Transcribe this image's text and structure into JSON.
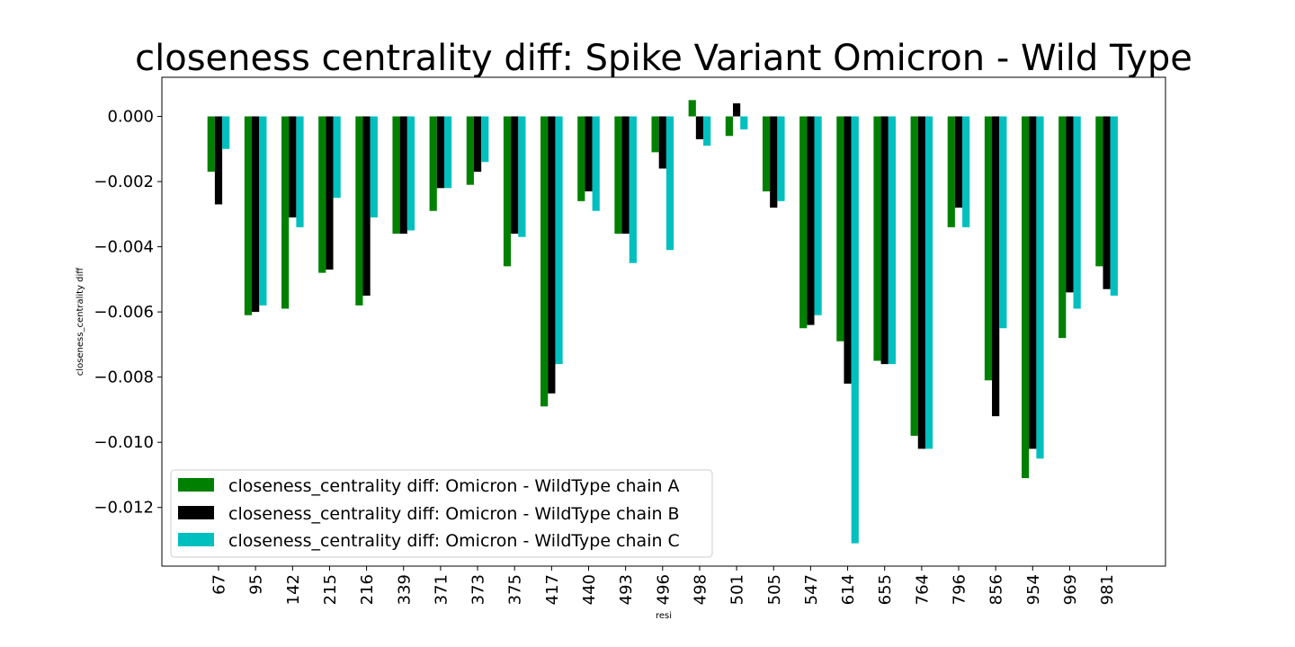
{
  "chart_data": {
    "type": "bar",
    "title": "closeness centrality diff: Spike Variant Omicron - Wild Type",
    "xlabel": "resi",
    "ylabel": "closeness_centrality diff",
    "ylim": [
      -0.0138,
      0.0012
    ],
    "yticks": [
      0.0,
      -0.002,
      -0.004,
      -0.006,
      -0.008,
      -0.01,
      -0.012
    ],
    "ytick_labels": [
      "0.000",
      "−0.002",
      "−0.004",
      "−0.006",
      "−0.008",
      "−0.010",
      "−0.012"
    ],
    "categories": [
      "67",
      "95",
      "142",
      "215",
      "216",
      "339",
      "371",
      "373",
      "375",
      "417",
      "440",
      "493",
      "496",
      "498",
      "501",
      "505",
      "547",
      "614",
      "655",
      "764",
      "796",
      "856",
      "954",
      "969",
      "981"
    ],
    "series": [
      {
        "name": "closeness_centrality diff: Omicron - WildType chain A",
        "color": "#008000",
        "values": [
          -0.0017,
          -0.0061,
          -0.0059,
          -0.0048,
          -0.0058,
          -0.0036,
          -0.0029,
          -0.0021,
          -0.0046,
          -0.0089,
          -0.0026,
          -0.0036,
          -0.0011,
          0.0005,
          -0.0006,
          -0.0023,
          -0.0065,
          -0.0069,
          -0.0075,
          -0.0098,
          -0.0034,
          -0.0081,
          -0.0111,
          -0.0068,
          -0.0046
        ]
      },
      {
        "name": "closeness_centrality diff: Omicron - WildType chain B",
        "color": "#000000",
        "values": [
          -0.0027,
          -0.006,
          -0.0031,
          -0.0047,
          -0.0055,
          -0.0036,
          -0.0022,
          -0.0017,
          -0.0036,
          -0.0085,
          -0.0023,
          -0.0036,
          -0.0016,
          -0.0007,
          0.0004,
          -0.0028,
          -0.0064,
          -0.0082,
          -0.0076,
          -0.0102,
          -0.0028,
          -0.0092,
          -0.0102,
          -0.0054,
          -0.0053
        ]
      },
      {
        "name": "closeness_centrality diff: Omicron - WildType chain C",
        "color": "#00BFBF",
        "values": [
          -0.001,
          -0.0058,
          -0.0034,
          -0.0025,
          -0.0031,
          -0.0035,
          -0.0022,
          -0.0014,
          -0.0037,
          -0.0076,
          -0.0029,
          -0.0045,
          -0.0041,
          -0.0009,
          -0.0004,
          -0.0026,
          -0.0061,
          -0.0131,
          -0.0076,
          -0.0102,
          -0.0034,
          -0.0065,
          -0.0105,
          -0.0059,
          -0.0055
        ]
      }
    ],
    "grid": false,
    "legend_position": "lower-left"
  }
}
